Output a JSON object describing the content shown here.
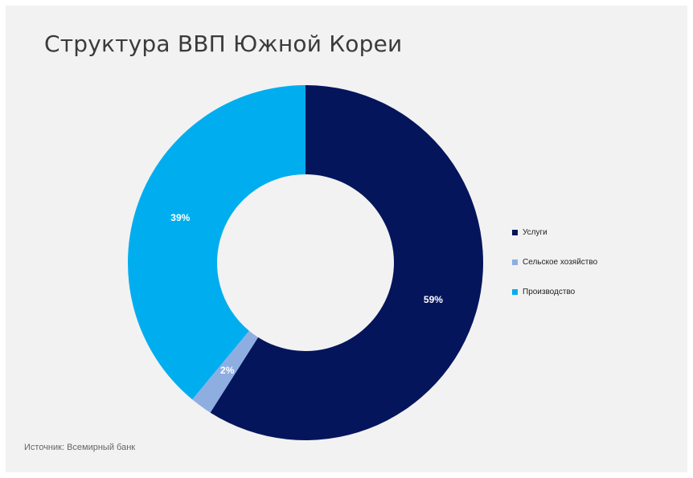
{
  "title": "Структура ВВП Южной Кореи",
  "source": "Источник: Всемирный банк",
  "chart_data": {
    "type": "pie",
    "variant": "donut",
    "title": "Структура ВВП Южной Кореи",
    "categories": [
      "Услуги",
      "Сельское хозяйство",
      "Производство"
    ],
    "values": [
      59,
      2,
      39
    ],
    "labels": [
      "59%",
      "2%",
      "39%"
    ],
    "colors": [
      "#05155c",
      "#8eaee2",
      "#00aeef"
    ],
    "start_angle": "12 o'clock, clockwise",
    "legend_position": "right"
  }
}
